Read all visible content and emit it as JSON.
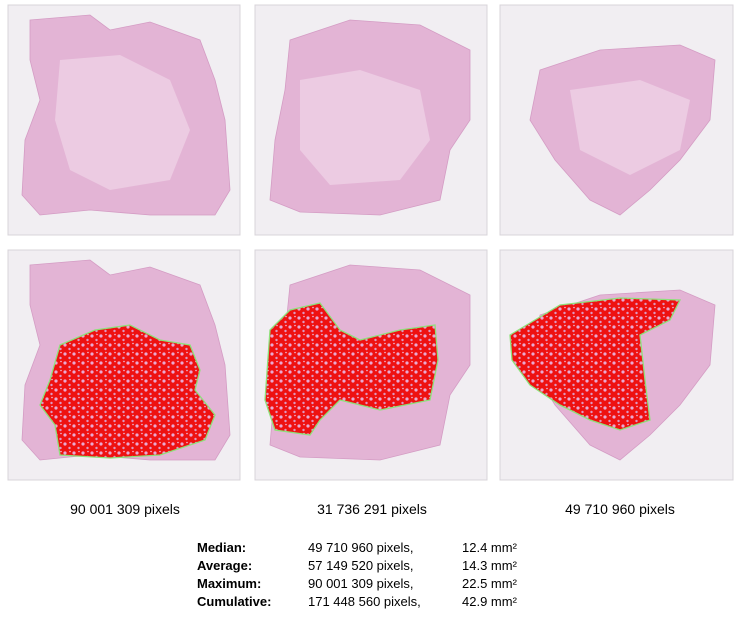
{
  "captions": [
    "90 001 309 pixels",
    "31 736 291 pixels",
    "49 710 960 pixels"
  ],
  "stats": {
    "rows": [
      {
        "label": "Median:",
        "pixels": "49 710 960 pixels,",
        "area": "12.4 mm²"
      },
      {
        "label": "Average:",
        "pixels": "57 149 520 pixels,",
        "area": "14.3 mm²"
      },
      {
        "label": "Maximum:",
        "pixels": "90 001 309 pixels,",
        "area": "22.5 mm²"
      },
      {
        "label": "Cumulative:",
        "pixels": "171 448 560 pixels,",
        "area": "42.9 mm²"
      }
    ]
  }
}
